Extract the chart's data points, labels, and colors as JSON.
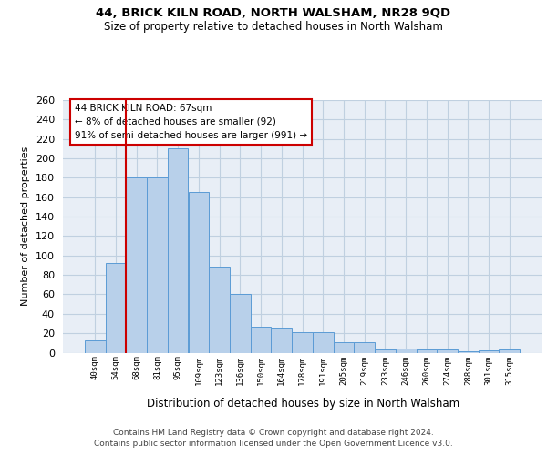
{
  "title": "44, BRICK KILN ROAD, NORTH WALSHAM, NR28 9QD",
  "subtitle": "Size of property relative to detached houses in North Walsham",
  "xlabel": "Distribution of detached houses by size in North Walsham",
  "ylabel": "Number of detached properties",
  "categories": [
    "40sqm",
    "54sqm",
    "68sqm",
    "81sqm",
    "95sqm",
    "109sqm",
    "123sqm",
    "136sqm",
    "150sqm",
    "164sqm",
    "178sqm",
    "191sqm",
    "205sqm",
    "219sqm",
    "233sqm",
    "246sqm",
    "260sqm",
    "274sqm",
    "288sqm",
    "301sqm",
    "315sqm"
  ],
  "values": [
    13,
    92,
    180,
    180,
    210,
    165,
    89,
    60,
    27,
    26,
    21,
    21,
    11,
    11,
    3,
    4,
    3,
    3,
    1,
    2,
    3
  ],
  "bar_color": "#b8d0ea",
  "bar_edge_color": "#5b9bd5",
  "grid_color": "#c0d0e0",
  "background_color": "#e8eef6",
  "property_line_x": 1.5,
  "annotation_text": "44 BRICK KILN ROAD: 67sqm\n← 8% of detached houses are smaller (92)\n91% of semi-detached houses are larger (991) →",
  "annotation_box_facecolor": "white",
  "annotation_box_edgecolor": "#cc0000",
  "footer_line1": "Contains HM Land Registry data © Crown copyright and database right 2024.",
  "footer_line2": "Contains public sector information licensed under the Open Government Licence v3.0.",
  "ylim": [
    0,
    260
  ],
  "yticks": [
    0,
    20,
    40,
    60,
    80,
    100,
    120,
    140,
    160,
    180,
    200,
    220,
    240,
    260
  ],
  "title_fontsize": 9.5,
  "subtitle_fontsize": 8.5,
  "ylabel_fontsize": 8,
  "xlabel_fontsize": 8.5,
  "ytick_fontsize": 8,
  "xtick_fontsize": 6.5,
  "annotation_fontsize": 7.5,
  "footer_fontsize": 6.5
}
